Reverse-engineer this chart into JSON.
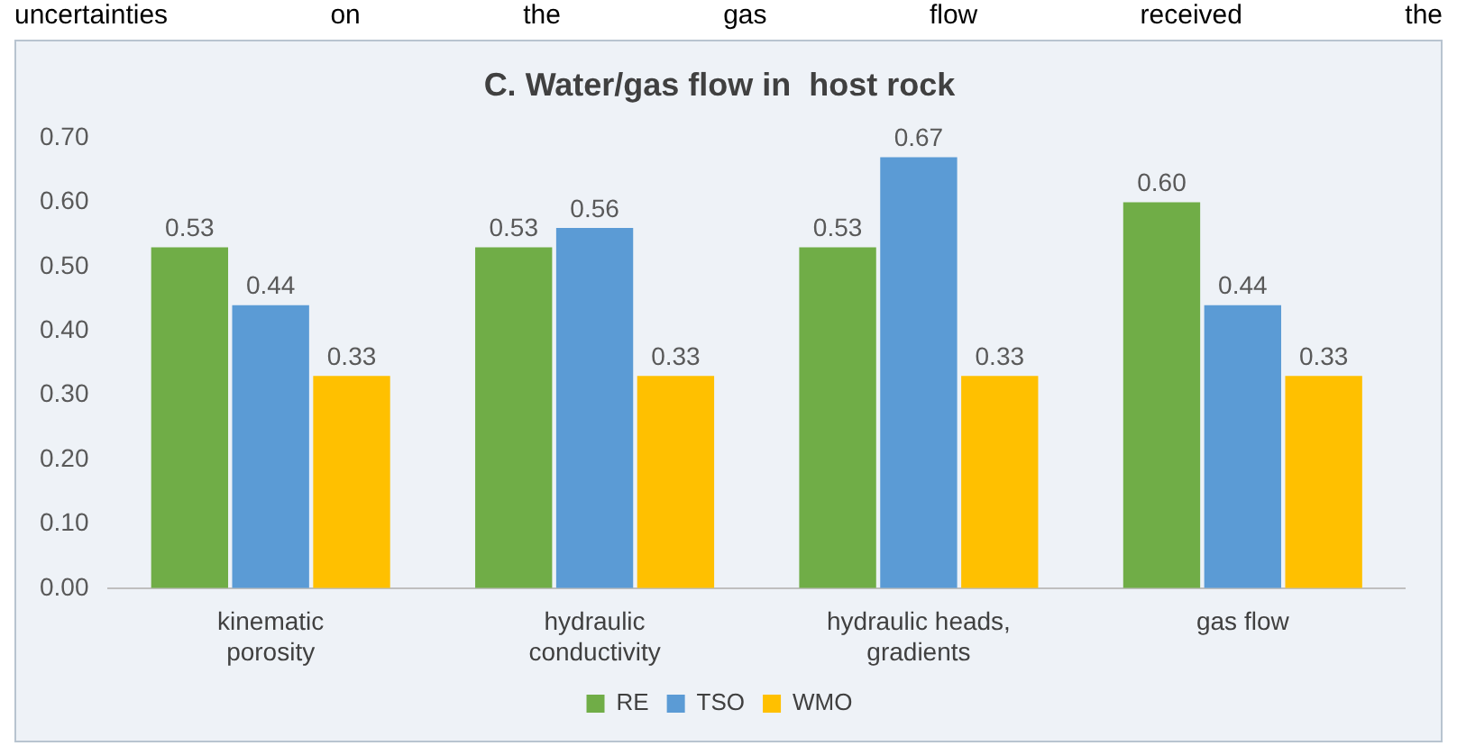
{
  "chart_data": {
    "type": "bar",
    "title": "C. Water/gas flow in  host rock",
    "annotations": [
      "uncertainties on the gas flow received the"
    ],
    "categories": [
      [
        "kinematic",
        "porosity"
      ],
      [
        "hydraulic",
        "conductivity"
      ],
      [
        "hydraulic heads,",
        "gradients"
      ],
      [
        "gas flow"
      ]
    ],
    "series": [
      {
        "name": "RE",
        "color": "#70ad47",
        "values": [
          0.53,
          0.53,
          0.53,
          0.6
        ],
        "value_labels": [
          "0.53",
          "0.53",
          "0.53",
          "0.60"
        ]
      },
      {
        "name": "TSO",
        "color": "#5b9bd5",
        "values": [
          0.44,
          0.56,
          0.67,
          0.44
        ],
        "value_labels": [
          "0.44",
          "0.56",
          "0.67",
          "0.44"
        ]
      },
      {
        "name": "WMO",
        "color": "#ffc000",
        "values": [
          0.33,
          0.33,
          0.33,
          0.33
        ],
        "value_labels": [
          "0.33",
          "0.33",
          "0.33",
          "0.33"
        ]
      }
    ],
    "ylim": [
      0,
      0.7
    ],
    "yticks": [
      {
        "value": 0,
        "label": "0.00"
      },
      {
        "value": 0.1,
        "label": "0.10"
      },
      {
        "value": 0.2,
        "label": "0.20"
      },
      {
        "value": 0.3,
        "label": "0.30"
      },
      {
        "value": 0.4,
        "label": "0.40"
      },
      {
        "value": 0.5,
        "label": "0.50"
      },
      {
        "value": 0.6,
        "label": "0.60"
      },
      {
        "value": 0.7,
        "label": "0.70"
      }
    ],
    "grid": false,
    "legend": "bottom"
  }
}
